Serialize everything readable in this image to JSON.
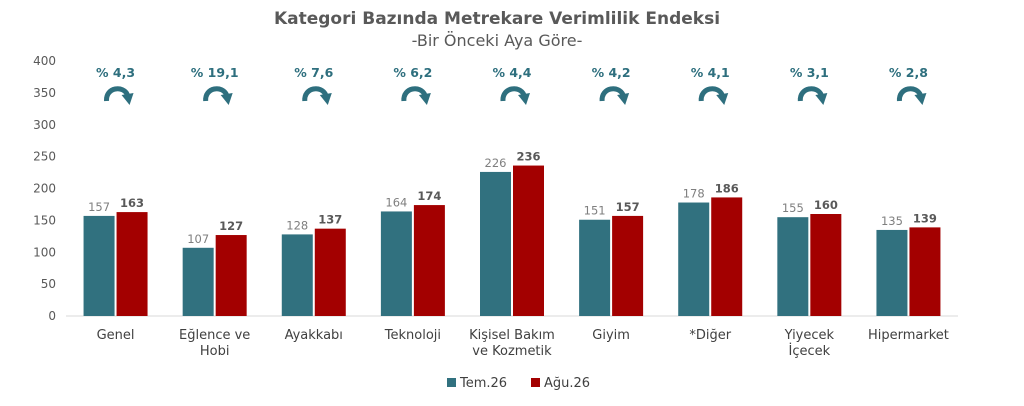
{
  "colors": {
    "series_a": "#31717f",
    "series_b": "#a30000",
    "change": "#2e6f7e",
    "axis": "#d9d9d9",
    "text": "#595959"
  },
  "chart_data": {
    "type": "bar",
    "title": "Kategori Bazında Metrekare Verimlilik Endeksi",
    "subtitle": "-Bir Önceki Aya Göre-",
    "categories": [
      [
        "Genel"
      ],
      [
        "Eğlence ve",
        "Hobi"
      ],
      [
        "Ayakkabı"
      ],
      [
        "Teknoloji"
      ],
      [
        "Kişisel Bakım",
        "ve Kozmetik"
      ],
      [
        "Giyim"
      ],
      [
        "*Diğer"
      ],
      [
        "Yiyecek",
        "İçecek"
      ],
      [
        "Hipermarket"
      ]
    ],
    "series": [
      {
        "name": "Tem.26",
        "values": [
          157,
          107,
          128,
          164,
          226,
          151,
          178,
          155,
          135
        ]
      },
      {
        "name": "Ağu.26",
        "values": [
          163,
          127,
          137,
          174,
          236,
          157,
          186,
          160,
          139
        ]
      }
    ],
    "changes": [
      "% 4,3",
      "% 19,1",
      "% 7,6",
      "% 6,2",
      "% 4,4",
      "% 4,2",
      "% 4,1",
      "% 3,1",
      "% 2,8"
    ],
    "change_icon": "curved-arrow-icon",
    "ylim": [
      0,
      400
    ],
    "yticks": [
      0,
      50,
      100,
      150,
      200,
      250,
      300,
      350,
      400
    ],
    "xlabel": "",
    "ylabel": "",
    "grid": false,
    "legend_position": "bottom-center"
  }
}
